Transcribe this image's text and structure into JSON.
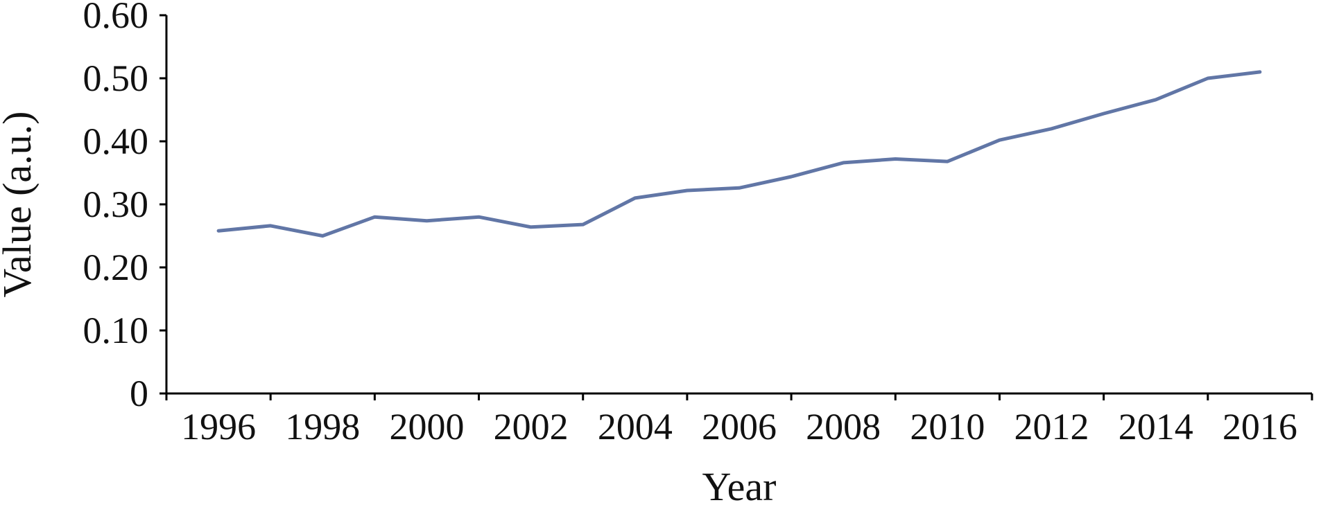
{
  "chart_data": {
    "type": "line",
    "title": "",
    "xlabel": "Year",
    "ylabel": "Value (a.u.)",
    "ylim": [
      0,
      0.6
    ],
    "xlim": [
      1996,
      2016
    ],
    "grid": false,
    "legend": "none",
    "line_color": "#6176a6",
    "x_ticks": [
      "1996",
      "1998",
      "2000",
      "2002",
      "2004",
      "2006",
      "2008",
      "2010",
      "2012",
      "2014",
      "2016"
    ],
    "y_ticks": [
      {
        "value": 0,
        "label": "0"
      },
      {
        "value": 0.1,
        "label": "0.10"
      },
      {
        "value": 0.2,
        "label": "0.20"
      },
      {
        "value": 0.3,
        "label": "0.30"
      },
      {
        "value": 0.4,
        "label": "0.40"
      },
      {
        "value": 0.5,
        "label": "0.50"
      },
      {
        "value": 0.6,
        "label": "0.60"
      }
    ],
    "series": [
      {
        "x": [
          1996,
          1997,
          1998,
          1999,
          2000,
          2001,
          2002,
          2003,
          2004,
          2005,
          2006,
          2007,
          2008,
          2009,
          2010,
          2011,
          2012,
          2013,
          2014,
          2015,
          2016
        ],
        "values": [
          0.258,
          0.266,
          0.25,
          0.28,
          0.274,
          0.28,
          0.264,
          0.268,
          0.31,
          0.322,
          0.326,
          0.344,
          0.366,
          0.372,
          0.368,
          0.402,
          0.42,
          0.444,
          0.466,
          0.5,
          0.51
        ]
      }
    ]
  }
}
